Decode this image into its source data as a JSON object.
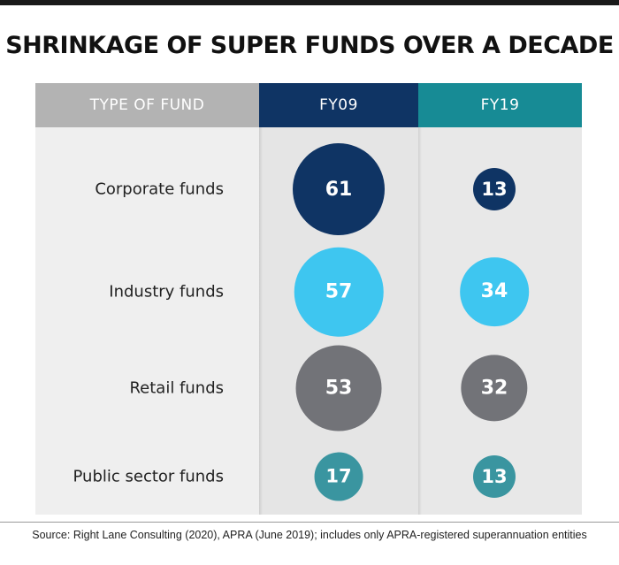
{
  "title": "SHRINKAGE OF SUPER FUNDS OVER A DECADE",
  "colors": {
    "fy09_header": "#0f3464",
    "fy19_header": "#178b95",
    "label_header": "#b3b3b3",
    "corporate": "#0f3464",
    "industry": "#3ec6f0",
    "retail": "#727378",
    "public_sector": "#3a95a0"
  },
  "chart_data": {
    "type": "table",
    "title": "SHRINKAGE OF SUPER FUNDS OVER A DECADE",
    "header_label": "TYPE OF FUND",
    "columns": [
      "FY09",
      "FY19"
    ],
    "rows": [
      {
        "label": "Corporate funds",
        "values": [
          61,
          13
        ],
        "color": "#0f3464"
      },
      {
        "label": "Industry funds",
        "values": [
          57,
          34
        ],
        "color": "#3ec6f0"
      },
      {
        "label": "Retail funds",
        "values": [
          53,
          32
        ],
        "color": "#727378"
      },
      {
        "label": "Public sector funds",
        "values": [
          17,
          13
        ],
        "color": "#3a95a0"
      }
    ],
    "encoding": "bubble area proportional to number of funds"
  },
  "source": "Source: Right Lane Consulting (2020), APRA (June 2019); includes only APRA-registered superannuation entities"
}
